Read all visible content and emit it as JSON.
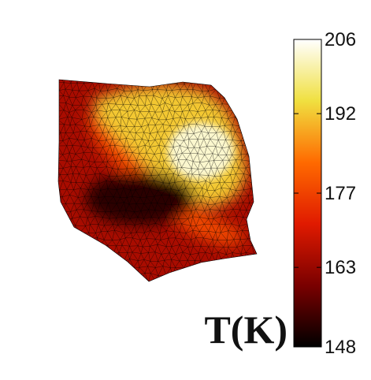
{
  "chart_data": {
    "type": "heatmap",
    "colormap": "hot",
    "colorbar": {
      "min": 148,
      "max": 206,
      "ticks": [
        206,
        192,
        177,
        163,
        148
      ],
      "label": "T(K)",
      "colors": [
        "#000000",
        "#7a0000",
        "#e01a00",
        "#ff6a00",
        "#f0e040",
        "#ffffff"
      ]
    },
    "field": {
      "mesh": "triangular",
      "mesh_color": "#000000",
      "regions": [
        {
          "name": "background",
          "value": 165
        },
        {
          "name": "hot-band",
          "value": 192
        },
        {
          "name": "hot-core",
          "value": 203
        },
        {
          "name": "cold-pocket",
          "value": 152
        },
        {
          "name": "warm-streak",
          "value": 178
        }
      ]
    }
  }
}
